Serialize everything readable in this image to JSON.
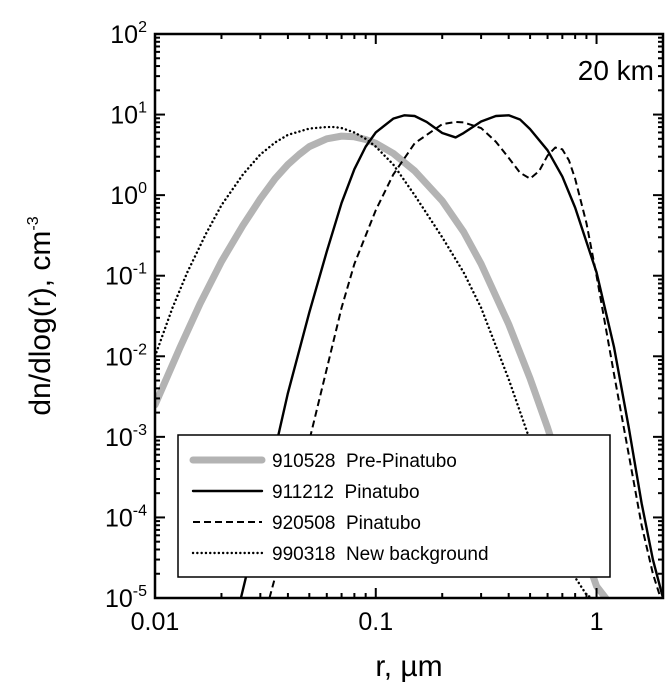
{
  "chart_data": {
    "type": "line",
    "title": "",
    "annotation": "20 km",
    "xlabel": "r, µm",
    "ylabel": "dn/dlog(r), cm",
    "ylabel_superscript": "-3",
    "xscale": "log",
    "yscale": "log",
    "xlim": [
      0.01,
      2
    ],
    "ylim": [
      1e-05,
      100
    ],
    "x_ticks": [
      {
        "value": 0.01,
        "label": "0.01"
      },
      {
        "value": 0.1,
        "label": "0.1"
      },
      {
        "value": 1,
        "label": "1"
      }
    ],
    "y_ticks": [
      {
        "value": 100,
        "base": "10",
        "exp": "2"
      },
      {
        "value": 10,
        "base": "10",
        "exp": "1"
      },
      {
        "value": 1,
        "base": "10",
        "exp": "0"
      },
      {
        "value": 0.1,
        "base": "10",
        "exp": "-1"
      },
      {
        "value": 0.01,
        "base": "10",
        "exp": "-2"
      },
      {
        "value": 0.001,
        "base": "10",
        "exp": "-3"
      },
      {
        "value": 0.0001,
        "base": "10",
        "exp": "-4"
      },
      {
        "value": 1e-05,
        "base": "10",
        "exp": "-5"
      }
    ],
    "grid": false,
    "legend_position": "bottom-center",
    "series": [
      {
        "name": "910528  Pre-Pinatubo",
        "style": "thick-gray",
        "color": "#b3b3b3",
        "x": [
          0.01,
          0.013,
          0.016,
          0.02,
          0.025,
          0.03,
          0.035,
          0.04,
          0.045,
          0.05,
          0.06,
          0.07,
          0.08,
          0.09,
          0.1,
          0.12,
          0.15,
          0.2,
          0.25,
          0.3,
          0.4,
          0.5,
          0.6,
          0.7,
          0.8,
          0.9,
          1.0,
          1.1
        ],
        "y": [
          0.0025,
          0.013,
          0.045,
          0.15,
          0.42,
          0.9,
          1.6,
          2.4,
          3.2,
          4.0,
          5.0,
          5.4,
          5.3,
          4.9,
          4.4,
          3.3,
          2.0,
          0.85,
          0.35,
          0.14,
          0.025,
          0.0053,
          0.0013,
          0.00035,
          0.0001,
          3.2e-05,
          1.4e-05,
          1e-05
        ]
      },
      {
        "name": "911212  Pinatubo",
        "style": "solid",
        "color": "#000000",
        "x": [
          0.0245,
          0.03,
          0.035,
          0.04,
          0.05,
          0.06,
          0.07,
          0.08,
          0.09,
          0.1,
          0.12,
          0.135,
          0.15,
          0.17,
          0.2,
          0.23,
          0.25,
          0.3,
          0.35,
          0.4,
          0.45,
          0.5,
          0.6,
          0.7,
          0.8,
          1.0,
          1.2,
          1.4,
          1.6,
          1.8,
          2.0
        ],
        "y": [
          1e-05,
          0.0001,
          0.0007,
          0.0035,
          0.035,
          0.2,
          0.8,
          2.1,
          4.0,
          6.0,
          8.9,
          9.8,
          9.6,
          8.1,
          5.9,
          5.2,
          5.9,
          8.2,
          9.6,
          9.8,
          8.7,
          6.6,
          3.6,
          1.7,
          0.7,
          0.11,
          0.013,
          0.0013,
          0.00015,
          3e-05,
          1e-05
        ]
      },
      {
        "name": "920508  Pinatubo",
        "style": "dashed",
        "color": "#000000",
        "x": [
          0.033,
          0.04,
          0.05,
          0.06,
          0.07,
          0.08,
          0.1,
          0.12,
          0.15,
          0.2,
          0.23,
          0.25,
          0.3,
          0.35,
          0.4,
          0.45,
          0.5,
          0.55,
          0.6,
          0.65,
          0.7,
          0.75,
          0.8,
          0.9,
          1.0,
          1.2,
          1.4,
          1.6,
          1.8,
          1.95
        ],
        "y": [
          1e-05,
          7e-05,
          0.0009,
          0.007,
          0.04,
          0.14,
          0.65,
          1.8,
          4.4,
          7.6,
          8.1,
          8.0,
          6.8,
          4.6,
          2.9,
          1.9,
          1.6,
          2.0,
          3.1,
          3.9,
          3.7,
          2.7,
          1.6,
          0.45,
          0.1,
          0.006,
          0.0006,
          8e-05,
          2e-05,
          1e-05
        ]
      },
      {
        "name": "990318  New background",
        "style": "dotted",
        "color": "#000000",
        "x": [
          0.01,
          0.012,
          0.014,
          0.017,
          0.02,
          0.025,
          0.03,
          0.035,
          0.04,
          0.05,
          0.06,
          0.065,
          0.07,
          0.08,
          0.09,
          0.1,
          0.12,
          0.15,
          0.2,
          0.25,
          0.3,
          0.4,
          0.5,
          0.6,
          0.7,
          0.8,
          0.9,
          0.95
        ],
        "y": [
          0.01,
          0.04,
          0.11,
          0.33,
          0.75,
          1.8,
          3.2,
          4.5,
          5.6,
          6.7,
          7.0,
          7.0,
          6.8,
          6.0,
          5.0,
          4.0,
          2.4,
          1.0,
          0.3,
          0.11,
          0.04,
          0.0052,
          0.0009,
          0.00018,
          5e-05,
          1.8e-05,
          1.1e-05,
          1e-05
        ]
      }
    ]
  }
}
